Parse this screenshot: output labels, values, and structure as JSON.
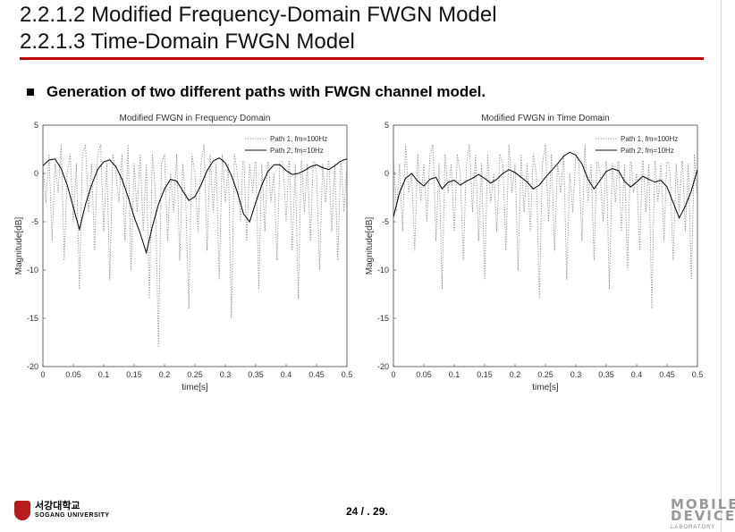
{
  "slide": {
    "title_line1": "2.2.1.2 Modified Frequency-Domain FWGN Model",
    "title_line2": "2.2.1.3 Time-Domain FWGN Model",
    "bullet": "Generation of two different paths with FWGN channel model.",
    "page_number": "24 / . 29.",
    "university_kr": "서강대학교",
    "university_en": "SOGANG UNIVERSITY",
    "lab_logo_line1": "MOBILE",
    "lab_logo_line2": "DEVICE",
    "lab_logo_sub": "LABORATORY",
    "colors": {
      "accent": "#c00000"
    }
  },
  "chart_data": [
    {
      "type": "line",
      "title": "Modified FWGN in Frequency Domain",
      "xlabel": "time[s]",
      "ylabel": "Magnitude[dB]",
      "xlim": [
        0,
        0.5
      ],
      "ylim": [
        -20,
        5
      ],
      "xticks": [
        0,
        0.05,
        0.1,
        0.15,
        0.2,
        0.25,
        0.3,
        0.35,
        0.4,
        0.45,
        0.5
      ],
      "xtick_labels": [
        "0",
        "0.05",
        "0.1",
        "0.15",
        "0.2",
        "0.25",
        "0.3",
        "0.35",
        "0.4",
        "0.45",
        "0.5"
      ],
      "yticks": [
        5,
        0,
        -5,
        -10,
        -15,
        -20
      ],
      "ytick_labels": [
        "5",
        "0",
        "-5",
        "-10",
        "-15",
        "-20"
      ],
      "legend_position": "top-right",
      "series": [
        {
          "name": "Path 1, fm=100Hz",
          "style": "dotted",
          "x": [
            0,
            0.005,
            0.01,
            0.015,
            0.02,
            0.025,
            0.03,
            0.035,
            0.04,
            0.045,
            0.05,
            0.055,
            0.06,
            0.065,
            0.07,
            0.075,
            0.08,
            0.085,
            0.09,
            0.095,
            0.1,
            0.105,
            0.11,
            0.115,
            0.12,
            0.125,
            0.13,
            0.135,
            0.14,
            0.145,
            0.15,
            0.155,
            0.16,
            0.165,
            0.17,
            0.175,
            0.18,
            0.185,
            0.19,
            0.195,
            0.2,
            0.205,
            0.21,
            0.215,
            0.22,
            0.225,
            0.23,
            0.235,
            0.24,
            0.245,
            0.25,
            0.255,
            0.26,
            0.265,
            0.27,
            0.275,
            0.28,
            0.285,
            0.29,
            0.295,
            0.3,
            0.305,
            0.31,
            0.315,
            0.32,
            0.325,
            0.33,
            0.335,
            0.34,
            0.345,
            0.35,
            0.355,
            0.36,
            0.365,
            0.37,
            0.375,
            0.38,
            0.385,
            0.39,
            0.395,
            0.4,
            0.405,
            0.41,
            0.415,
            0.42,
            0.425,
            0.43,
            0.435,
            0.44,
            0.445,
            0.45,
            0.455,
            0.46,
            0.465,
            0.47,
            0.475,
            0.48,
            0.485,
            0.49,
            0.495,
            0.5
          ],
          "y": [
            1,
            -3,
            2,
            -7,
            1,
            -2,
            3,
            -9,
            0,
            2,
            -5,
            1,
            -12,
            2,
            3,
            -4,
            1,
            -8,
            2,
            3,
            -6,
            1,
            -11,
            2,
            0,
            -3,
            2,
            -7,
            3,
            -10,
            1,
            -4,
            2,
            -6,
            1,
            -13,
            2,
            -2,
            -18,
            1,
            2,
            -7,
            0,
            -4,
            2,
            -9,
            1,
            -3,
            -14,
            2,
            0,
            -6,
            1,
            3,
            -8,
            2,
            -4,
            1,
            -11,
            2,
            -3,
            1,
            -15,
            2,
            0,
            -5,
            3,
            -7,
            1,
            -2,
            2,
            -12,
            1,
            -6,
            2,
            -3,
            0,
            -9,
            2,
            1,
            -5,
            2,
            -8,
            1,
            -13,
            2,
            -4,
            1,
            -7,
            2,
            0,
            -10,
            1,
            -3,
            2,
            -6,
            1,
            -9,
            2,
            -4,
            1
          ]
        },
        {
          "name": "Path 2, fm=10Hz",
          "style": "solid",
          "x": [
            0,
            0.01,
            0.02,
            0.03,
            0.04,
            0.05,
            0.06,
            0.07,
            0.08,
            0.09,
            0.1,
            0.11,
            0.12,
            0.13,
            0.14,
            0.15,
            0.16,
            0.17,
            0.18,
            0.19,
            0.2,
            0.21,
            0.22,
            0.23,
            0.24,
            0.25,
            0.26,
            0.27,
            0.28,
            0.29,
            0.3,
            0.31,
            0.32,
            0.33,
            0.34,
            0.35,
            0.36,
            0.37,
            0.38,
            0.39,
            0.4,
            0.41,
            0.42,
            0.43,
            0.44,
            0.45,
            0.46,
            0.47,
            0.48,
            0.49,
            0.5
          ],
          "y": [
            0.8,
            1.4,
            1.5,
            0.5,
            -1.2,
            -3.5,
            -5.8,
            -3.2,
            -1.2,
            0.4,
            1.2,
            1.4,
            0.7,
            -0.6,
            -2.4,
            -4.5,
            -6.2,
            -8.2,
            -5.5,
            -3.2,
            -1.6,
            -0.6,
            -0.8,
            -1.8,
            -2.8,
            -2.4,
            -1.2,
            0.3,
            1.3,
            1.6,
            1.1,
            -0.2,
            -2.0,
            -4.2,
            -5.0,
            -3.0,
            -1.2,
            0.2,
            0.9,
            0.9,
            0.3,
            -0.1,
            0.0,
            0.3,
            0.7,
            0.9,
            0.6,
            0.4,
            0.8,
            1.3,
            1.5
          ]
        }
      ]
    },
    {
      "type": "line",
      "title": "Modified FWGN in Time Domain",
      "xlabel": "time[s]",
      "ylabel": "Magnitude[dB]",
      "xlim": [
        0,
        0.5
      ],
      "ylim": [
        -20,
        5
      ],
      "xticks": [
        0,
        0.05,
        0.1,
        0.15,
        0.2,
        0.25,
        0.3,
        0.35,
        0.4,
        0.45,
        0.5
      ],
      "xtick_labels": [
        "0",
        "0.05",
        "0.1",
        "0.15",
        "0.2",
        "0.25",
        "0.3",
        "0.35",
        "0.4",
        "0.45",
        "0.5"
      ],
      "yticks": [
        5,
        0,
        -5,
        -10,
        -15,
        -20
      ],
      "ytick_labels": [
        "5",
        "0",
        "-5",
        "-10",
        "-15",
        "-20"
      ],
      "legend_position": "top-right",
      "series": [
        {
          "name": "Path 1, fm=100Hz",
          "style": "dotted",
          "x": [
            0,
            0.005,
            0.01,
            0.015,
            0.02,
            0.025,
            0.03,
            0.035,
            0.04,
            0.045,
            0.05,
            0.055,
            0.06,
            0.065,
            0.07,
            0.075,
            0.08,
            0.085,
            0.09,
            0.095,
            0.1,
            0.105,
            0.11,
            0.115,
            0.12,
            0.125,
            0.13,
            0.135,
            0.14,
            0.145,
            0.15,
            0.155,
            0.16,
            0.165,
            0.17,
            0.175,
            0.18,
            0.185,
            0.19,
            0.195,
            0.2,
            0.205,
            0.21,
            0.215,
            0.22,
            0.225,
            0.23,
            0.235,
            0.24,
            0.245,
            0.25,
            0.255,
            0.26,
            0.265,
            0.27,
            0.275,
            0.28,
            0.285,
            0.29,
            0.295,
            0.3,
            0.305,
            0.31,
            0.315,
            0.32,
            0.325,
            0.33,
            0.335,
            0.34,
            0.345,
            0.35,
            0.355,
            0.36,
            0.365,
            0.37,
            0.375,
            0.38,
            0.385,
            0.39,
            0.395,
            0.4,
            0.405,
            0.41,
            0.415,
            0.42,
            0.425,
            0.43,
            0.435,
            0.44,
            0.445,
            0.45,
            0.455,
            0.46,
            0.465,
            0.47,
            0.475,
            0.48,
            0.485,
            0.49,
            0.495,
            0.5
          ],
          "y": [
            2,
            -4,
            1,
            -6,
            3,
            -2,
            0,
            -8,
            2,
            -3,
            1,
            -5,
            2,
            3,
            -7,
            1,
            -12,
            2,
            -2,
            1,
            -6,
            2,
            0,
            -9,
            1,
            3,
            -4,
            2,
            -7,
            1,
            -11,
            2,
            -3,
            0,
            -6,
            2,
            1,
            -8,
            3,
            -2,
            1,
            -10,
            2,
            -4,
            1,
            -6,
            2,
            0,
            -13,
            1,
            3,
            -5,
            2,
            -8,
            1,
            -2,
            2,
            -11,
            0,
            -4,
            2,
            1,
            -7,
            3,
            -3,
            1,
            -9,
            2,
            0,
            -5,
            2,
            -12,
            1,
            -3,
            2,
            -6,
            1,
            -10,
            2,
            -2,
            0,
            -8,
            2,
            -4,
            1,
            -14,
            2,
            -3,
            1,
            -7,
            2,
            0,
            -9,
            1,
            -4,
            2,
            -6,
            1,
            -11,
            2,
            -3
          ]
        },
        {
          "name": "Path 2, fm=10Hz",
          "style": "solid",
          "x": [
            0,
            0.01,
            0.02,
            0.03,
            0.04,
            0.05,
            0.06,
            0.07,
            0.08,
            0.09,
            0.1,
            0.11,
            0.12,
            0.13,
            0.14,
            0.15,
            0.16,
            0.17,
            0.18,
            0.19,
            0.2,
            0.21,
            0.22,
            0.23,
            0.24,
            0.25,
            0.26,
            0.27,
            0.28,
            0.29,
            0.3,
            0.31,
            0.32,
            0.33,
            0.34,
            0.35,
            0.36,
            0.37,
            0.38,
            0.39,
            0.4,
            0.41,
            0.42,
            0.43,
            0.44,
            0.45,
            0.46,
            0.47,
            0.48,
            0.49,
            0.5
          ],
          "y": [
            -4.5,
            -2.0,
            -0.5,
            0.0,
            -0.8,
            -1.3,
            -0.6,
            -0.4,
            -1.6,
            -0.9,
            -0.7,
            -1.2,
            -0.8,
            -0.5,
            -0.1,
            -0.5,
            -1.0,
            -0.6,
            0.0,
            0.4,
            0.1,
            -0.4,
            -0.9,
            -1.6,
            -1.2,
            -0.4,
            0.3,
            1.0,
            1.8,
            2.2,
            1.9,
            1.0,
            -0.6,
            -1.6,
            -0.7,
            0.2,
            0.5,
            0.3,
            -0.8,
            -1.4,
            -0.9,
            -0.3,
            -0.6,
            -0.9,
            -0.7,
            -1.4,
            -3.0,
            -4.6,
            -3.4,
            -1.8,
            0.4
          ]
        }
      ]
    }
  ]
}
